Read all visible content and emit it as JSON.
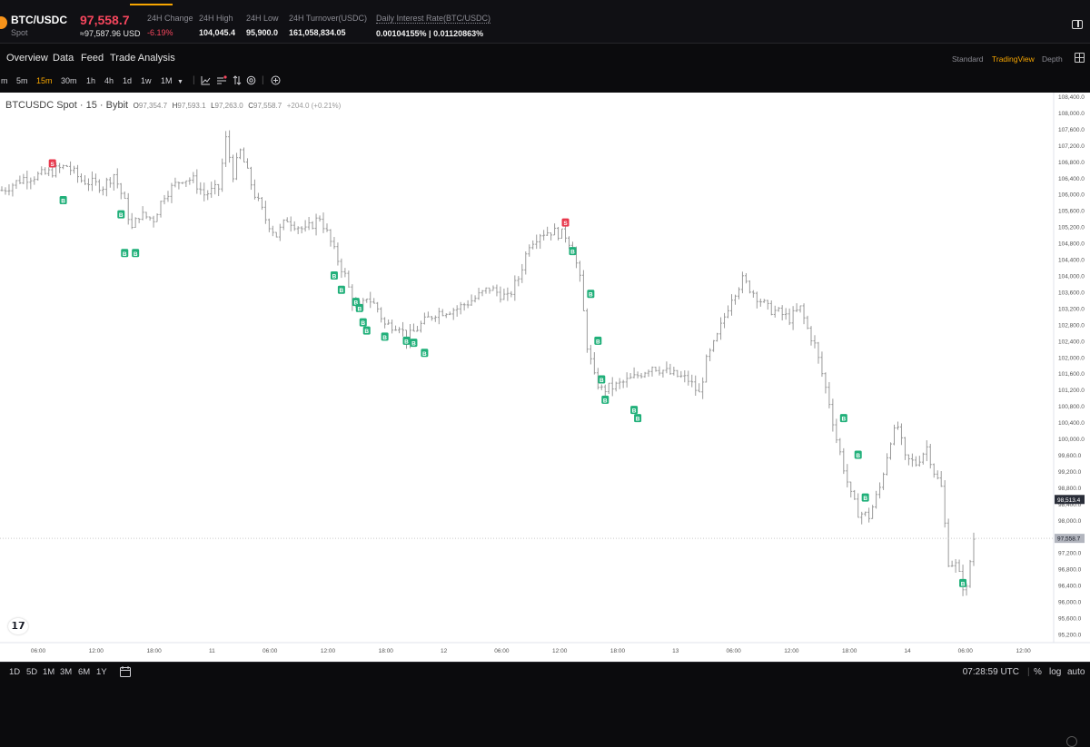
{
  "header": {
    "pair": "BTC/USDC",
    "market": "Spot",
    "last_price": "97,558.7",
    "usd_price": "≈97,587.96 USD",
    "stats": [
      {
        "label": "24H Change",
        "value": "-6.19%",
        "negative": true
      },
      {
        "label": "24H High",
        "value": "104,045.4"
      },
      {
        "label": "24H Low",
        "value": "95,900.0"
      },
      {
        "label": "24H Turnover(USDC)",
        "value": "161,058,834.05"
      },
      {
        "label": "Daily Interest Rate(BTC/USDC)",
        "value": "0.00104155% | 0.01120863%"
      }
    ]
  },
  "tabs": [
    "Overview",
    "Data",
    "Feed",
    "Trade Analysis"
  ],
  "views": {
    "standard": "Standard",
    "tradingview": "TradingView",
    "depth": "Depth",
    "active": "TradingView"
  },
  "toolbar": {
    "intervals": [
      "m",
      "5m",
      "15m",
      "30m",
      "1h",
      "4h",
      "1d",
      "1w",
      "1M"
    ],
    "active_interval": "15m",
    "icons": [
      "chevron-down-icon",
      "chart-type-icon",
      "indicators-icon",
      "compare-icon",
      "settings-icon",
      "add-icon"
    ]
  },
  "legend": {
    "symbol": "BTCUSDC Spot · 15 · Bybit",
    "o_label": "O",
    "o": "97,354.7",
    "h_label": "H",
    "h": "97,593.1",
    "l_label": "L",
    "l": "97,263.0",
    "c_label": "C",
    "c": "97,558.7",
    "change": "+204.0 (+0.21%)"
  },
  "chart_data": {
    "type": "ohlc",
    "title": "BTCUSDC Spot · 15 · Bybit",
    "y_ticks": [
      "108,400.0",
      "108,000.0",
      "107,600.0",
      "107,200.0",
      "106,800.0",
      "106,400.0",
      "106,000.0",
      "105,600.0",
      "105,200.0",
      "104,800.0",
      "104,400.0",
      "104,000.0",
      "103,600.0",
      "103,200.0",
      "102,800.0",
      "102,400.0",
      "102,000.0",
      "101,600.0",
      "101,200.0",
      "100,800.0",
      "100,400.0",
      "100,000.0",
      "99,600.0",
      "99,200.0",
      "98,800.0",
      "98,400.0",
      "98,000.0",
      "97,600.0",
      "97,200.0",
      "96,800.0",
      "96,400.0",
      "96,000.0",
      "95,600.0",
      "95,200.0"
    ],
    "ylim": [
      95000,
      108500
    ],
    "x_ticks": [
      "06:00",
      "12:00",
      "18:00",
      "11",
      "06:00",
      "12:00",
      "18:00",
      "12",
      "06:00",
      "12:00",
      "18:00",
      "13",
      "06:00",
      "12:00",
      "18:00",
      "14",
      "06:00",
      "12:00"
    ],
    "price_marker": "98,513.4",
    "last_price_label": "97,558.7",
    "last_price": 97558.7,
    "price_path": [
      [
        0,
        106100
      ],
      [
        6,
        106400
      ],
      [
        12,
        106500
      ],
      [
        18,
        106700
      ],
      [
        22,
        106350
      ],
      [
        28,
        106200
      ],
      [
        31,
        106500
      ],
      [
        34,
        105800
      ],
      [
        36,
        105150
      ],
      [
        38,
        105500
      ],
      [
        42,
        105400
      ],
      [
        45,
        106000
      ],
      [
        50,
        106400
      ],
      [
        53,
        106350
      ],
      [
        56,
        106000
      ],
      [
        60,
        106150
      ],
      [
        62,
        107350
      ],
      [
        64,
        106500
      ],
      [
        66,
        107050
      ],
      [
        70,
        106000
      ],
      [
        73,
        105400
      ],
      [
        76,
        105000
      ],
      [
        79,
        105400
      ],
      [
        84,
        105100
      ],
      [
        88,
        105450
      ],
      [
        90,
        105050
      ],
      [
        92,
        104600
      ],
      [
        95,
        104000
      ],
      [
        97,
        103400
      ],
      [
        99,
        103100
      ],
      [
        101,
        103500
      ],
      [
        104,
        103200
      ],
      [
        106,
        102800
      ],
      [
        110,
        102800
      ],
      [
        112,
        102450
      ],
      [
        116,
        102800
      ],
      [
        120,
        103100
      ],
      [
        126,
        103200
      ],
      [
        131,
        103450
      ],
      [
        135,
        103700
      ],
      [
        140,
        103450
      ],
      [
        143,
        103950
      ],
      [
        146,
        104800
      ],
      [
        149,
        105050
      ],
      [
        152,
        105100
      ],
      [
        156,
        105000
      ],
      [
        158,
        104700
      ],
      [
        160,
        103900
      ],
      [
        162,
        102300
      ],
      [
        164,
        101500
      ],
      [
        166,
        101200
      ],
      [
        170,
        101300
      ],
      [
        175,
        101500
      ],
      [
        180,
        101800
      ],
      [
        185,
        101600
      ],
      [
        190,
        101450
      ],
      [
        193,
        101100
      ],
      [
        195,
        101900
      ],
      [
        198,
        102500
      ],
      [
        202,
        103500
      ],
      [
        205,
        103900
      ],
      [
        208,
        103600
      ],
      [
        212,
        103200
      ],
      [
        215,
        103100
      ],
      [
        218,
        102950
      ],
      [
        221,
        103200
      ],
      [
        223,
        102700
      ],
      [
        225,
        102300
      ],
      [
        227,
        101600
      ],
      [
        229,
        100900
      ],
      [
        231,
        100000
      ],
      [
        233,
        99300
      ],
      [
        235,
        98600
      ],
      [
        237,
        98200
      ],
      [
        240,
        98100
      ],
      [
        243,
        98800
      ],
      [
        246,
        100000
      ],
      [
        248,
        100300
      ],
      [
        250,
        99500
      ],
      [
        253,
        99400
      ],
      [
        256,
        99800
      ],
      [
        258,
        99200
      ],
      [
        260,
        98800
      ],
      [
        262,
        97000
      ],
      [
        264,
        96900
      ],
      [
        266,
        96400
      ],
      [
        267,
        96300
      ],
      [
        268,
        97000
      ],
      [
        269,
        97558
      ]
    ],
    "signals": [
      {
        "i": 14,
        "price": 106750,
        "type": "S"
      },
      {
        "i": 17,
        "price": 105850,
        "type": "B"
      },
      {
        "i": 33,
        "price": 105500,
        "type": "B"
      },
      {
        "i": 34,
        "price": 104550,
        "type": "B"
      },
      {
        "i": 37,
        "price": 104550,
        "type": "B"
      },
      {
        "i": 92,
        "price": 104000,
        "type": "B"
      },
      {
        "i": 94,
        "price": 103650,
        "type": "B"
      },
      {
        "i": 98,
        "price": 103350,
        "type": "B"
      },
      {
        "i": 99,
        "price": 103200,
        "type": "B"
      },
      {
        "i": 100,
        "price": 102850,
        "type": "B"
      },
      {
        "i": 101,
        "price": 102650,
        "type": "B"
      },
      {
        "i": 106,
        "price": 102500,
        "type": "B"
      },
      {
        "i": 112,
        "price": 102400,
        "type": "B"
      },
      {
        "i": 114,
        "price": 102350,
        "type": "B"
      },
      {
        "i": 117,
        "price": 102100,
        "type": "B"
      },
      {
        "i": 156,
        "price": 105300,
        "type": "S"
      },
      {
        "i": 158,
        "price": 104600,
        "type": "B"
      },
      {
        "i": 163,
        "price": 103550,
        "type": "B"
      },
      {
        "i": 165,
        "price": 102400,
        "type": "B"
      },
      {
        "i": 166,
        "price": 101450,
        "type": "B"
      },
      {
        "i": 167,
        "price": 100950,
        "type": "B"
      },
      {
        "i": 175,
        "price": 100700,
        "type": "B"
      },
      {
        "i": 176,
        "price": 100500,
        "type": "B"
      },
      {
        "i": 233,
        "price": 100500,
        "type": "B"
      },
      {
        "i": 237,
        "price": 99600,
        "type": "B"
      },
      {
        "i": 239,
        "price": 98550,
        "type": "B"
      },
      {
        "i": 266,
        "price": 96450,
        "type": "B"
      }
    ]
  },
  "bottom": {
    "ranges": [
      "1D",
      "5D",
      "1M",
      "3M",
      "6M",
      "1Y"
    ],
    "clock": "07:28:59 UTC",
    "percent": "%",
    "log": "log",
    "auto": "auto"
  }
}
